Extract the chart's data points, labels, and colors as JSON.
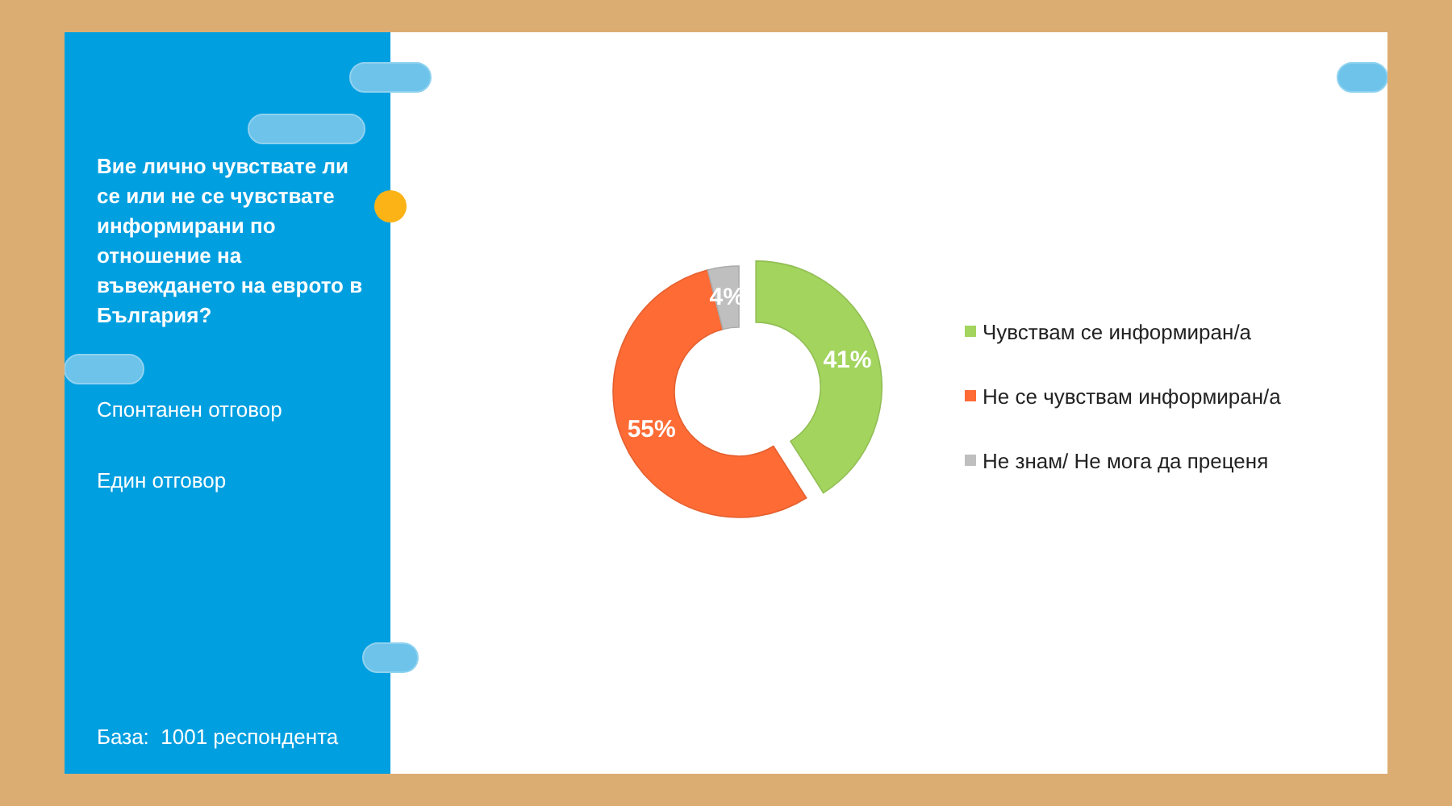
{
  "chart_data": {
    "type": "donut",
    "title": "Вие лично чувствате ли се или не се чувствате информирани по отношение на въвеждането на еврото в България?",
    "categories": [
      "Чувствам се информиран/а",
      "Не се чувствам информиран/а",
      "Не знам/ Не мога да преценя"
    ],
    "values": [
      41,
      55,
      4
    ],
    "colors": [
      "#a2d45e",
      "#fe6b35",
      "#bfbfbf"
    ],
    "value_labels": [
      "41%",
      "55%",
      "4%"
    ],
    "legend": "right",
    "annotations": [
      "Спонтанен отговор",
      "Един отговор",
      "База:  1001 респондента"
    ]
  }
}
